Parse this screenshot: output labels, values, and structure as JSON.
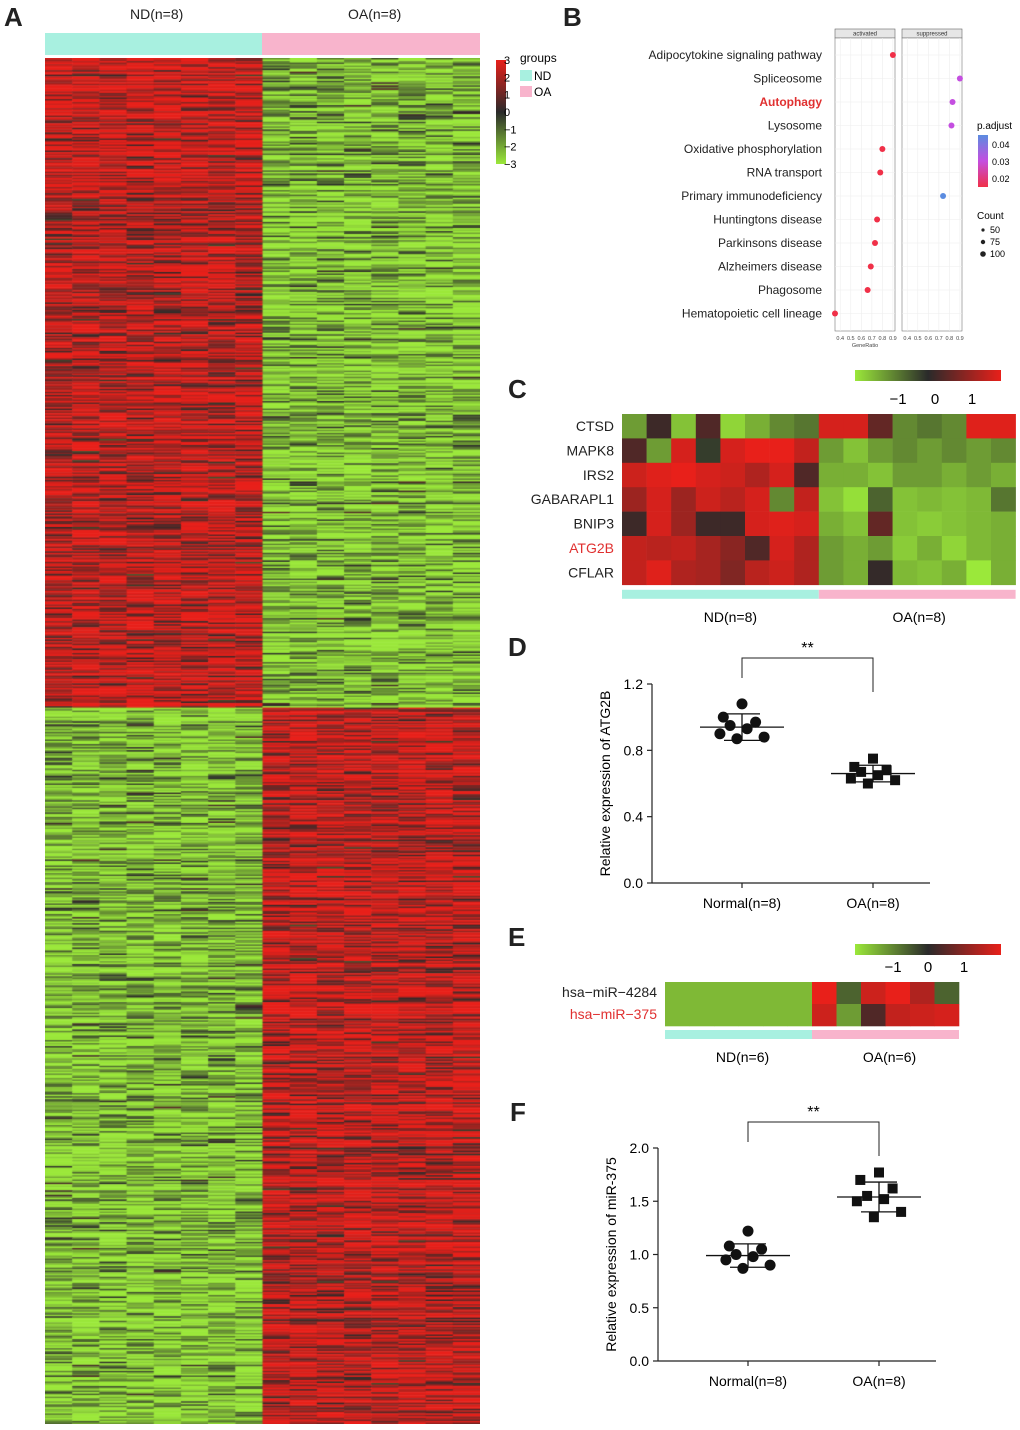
{
  "panels": {
    "A": {
      "letter": "A",
      "group_labels": [
        "ND(n=8)",
        "OA(n=8)"
      ],
      "legend_title": "groups",
      "legend_items": [
        {
          "name": "ND",
          "color": "#a8f0e0"
        },
        {
          "name": "OA",
          "color": "#f8b4cc"
        }
      ],
      "colorbar_ticks": [
        "3",
        "2",
        "1",
        "0",
        "−1",
        "−2",
        "−3"
      ]
    },
    "B": {
      "letter": "B",
      "facets": [
        "activated",
        "suppressed"
      ],
      "legend_title": "p.adjust",
      "legend_ticks": [
        "0.04",
        "0.03",
        "0.02"
      ],
      "count_title": "Count",
      "count_items": [
        "50",
        "75",
        "100"
      ],
      "xlabel": "GeneRatio",
      "xticks": [
        "0.4",
        "0.5",
        "0.6",
        "0.7",
        "0.8",
        "0.9"
      ]
    },
    "C": {
      "letter": "C",
      "genes": [
        "CTSD",
        "MAPK8",
        "IRS2",
        "GABARAPL1",
        "BNIP3",
        "ATG2B",
        "CFLAR"
      ],
      "highlight_gene": "ATG2B",
      "colorbar_ticks": [
        "−1",
        "0",
        "1"
      ],
      "group_labels": [
        "ND(n=8)",
        "OA(n=8)"
      ]
    },
    "D": {
      "letter": "D",
      "significance": "**",
      "ylabel": "Relative expression of ATG2B",
      "yticks": [
        "0.0",
        "0.4",
        "0.8",
        "1.2"
      ],
      "categories": [
        "Normal(n=8)",
        "OA(n=8)"
      ]
    },
    "E": {
      "letter": "E",
      "mirnas": [
        "hsa−miR−4284",
        "hsa−miR−375"
      ],
      "highlight_mirna": "hsa−miR−375",
      "colorbar_ticks": [
        "−1",
        "0",
        "1"
      ],
      "group_labels": [
        "ND(n=6)",
        "OA(n=6)"
      ]
    },
    "F": {
      "letter": "F",
      "significance": "**",
      "ylabel": "Relative expression of miR-375",
      "yticks": [
        "0.0",
        "0.5",
        "1.0",
        "1.5",
        "2.0"
      ],
      "categories": [
        "Normal(n=8)",
        "OA(n=8)"
      ]
    }
  },
  "colors": {
    "low": "#9be83a",
    "mid": "#3a3a3a",
    "high": "#e8201a",
    "highlight": "#e03030",
    "nd": "#a8f0e0",
    "oa": "#f8b4cc"
  },
  "chart_data": [
    {
      "type": "bar",
      "panel": "B",
      "note": "dot plot",
      "categories": [
        "Adipocytokine signaling pathway",
        "Spliceosome",
        "Autophagy",
        "Lysosome",
        "Oxidative phosphorylation",
        "RNA transport",
        "Primary immunodeficiency",
        "Huntingtons disease",
        "Parkinsons disease",
        "Alzheimers disease",
        "Phagosome",
        "Hematopoietic cell lineage"
      ],
      "highlight": "Autophagy",
      "series": [
        {
          "name": "activated",
          "gene_ratio": [
            0.9,
            null,
            null,
            null,
            0.8,
            0.78,
            null,
            0.75,
            0.73,
            0.69,
            0.66,
            0.35
          ],
          "p_adjust": [
            0.015,
            null,
            null,
            null,
            0.015,
            0.015,
            null,
            0.015,
            0.015,
            0.015,
            0.015,
            0.015
          ]
        },
        {
          "name": "suppressed",
          "gene_ratio": [
            null,
            0.9,
            0.83,
            0.82,
            null,
            null,
            0.74,
            null,
            null,
            null,
            null,
            null
          ],
          "p_adjust": [
            null,
            0.03,
            0.03,
            0.03,
            null,
            null,
            0.045,
            null,
            null,
            null,
            null,
            null
          ]
        }
      ],
      "xlabel": "GeneRatio",
      "xlim": [
        0.35,
        0.92
      ]
    },
    {
      "type": "scatter",
      "panel": "D",
      "categories": [
        "Normal(n=8)",
        "OA(n=8)"
      ],
      "series": [
        {
          "name": "Normal(n=8)",
          "values": [
            1.08,
            1.0,
            0.97,
            0.95,
            0.93,
            0.9,
            0.88,
            0.87
          ],
          "mean": 0.94,
          "sd": 0.08
        },
        {
          "name": "OA(n=8)",
          "values": [
            0.75,
            0.7,
            0.68,
            0.67,
            0.65,
            0.63,
            0.62,
            0.6
          ],
          "mean": 0.66,
          "sd": 0.05
        }
      ],
      "ylabel": "Relative expression of ATG2B",
      "ylim": [
        0,
        1.2
      ]
    },
    {
      "type": "scatter",
      "panel": "F",
      "categories": [
        "Normal(n=8)",
        "OA(n=8)"
      ],
      "series": [
        {
          "name": "Normal(n=8)",
          "values": [
            1.22,
            1.08,
            1.05,
            1.0,
            0.98,
            0.95,
            0.9,
            0.87
          ],
          "mean": 0.99,
          "sd": 0.11
        },
        {
          "name": "OA(n=8)",
          "values": [
            1.77,
            1.7,
            1.62,
            1.55,
            1.52,
            1.5,
            1.4,
            1.35
          ],
          "mean": 1.54,
          "sd": 0.14
        }
      ],
      "ylabel": "Relative expression of miR-375",
      "ylim": [
        0,
        2.0
      ]
    }
  ]
}
